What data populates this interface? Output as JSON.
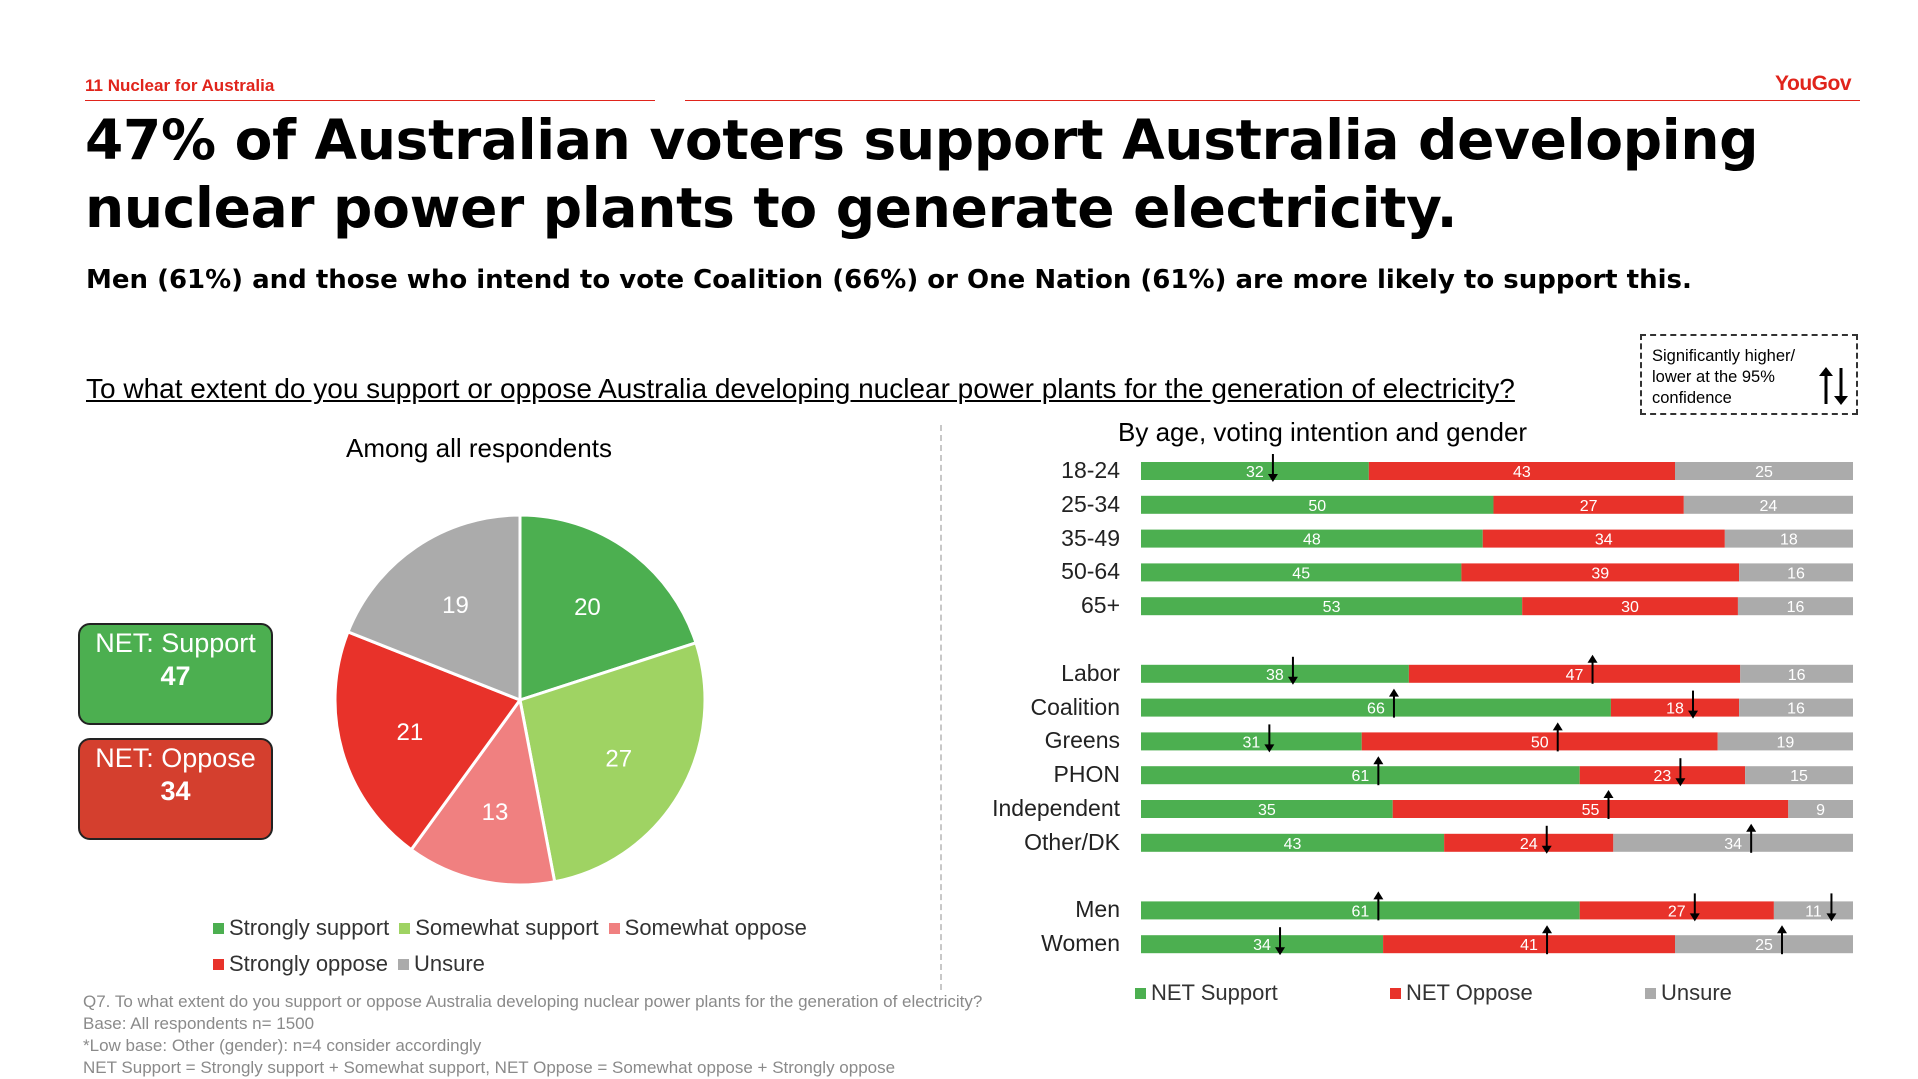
{
  "header": {
    "page_label": "11  Nuclear for Australia",
    "brand": "YouGov",
    "headline_line1": "47% of Australian voters support Australia developing",
    "headline_line2": "nuclear power plants to generate electricity.",
    "subhead": "Men (61%) and those who intend to vote Coalition (66%) or One Nation (61%) are more likely to support this.",
    "question": "To what extent do you support or oppose Australia developing nuclear power plants for the generation of electricity?",
    "significance_note": "Significantly higher/ lower at the 95% confidence"
  },
  "net_boxes": {
    "support_label": "NET: Support",
    "support_value": "47",
    "oppose_label": "NET: Oppose",
    "oppose_value": "34"
  },
  "colors": {
    "strongly_support": "#4caf50",
    "somewhat_support": "#9fd363",
    "somewhat_oppose": "#f08080",
    "strongly_oppose": "#e8322a",
    "unsure": "#ababab",
    "net_support": "#4caf50",
    "net_oppose": "#e8322a",
    "accent": "#e0241b"
  },
  "chart_data": [
    {
      "type": "pie",
      "title": "Among all respondents",
      "categories": [
        "Strongly support",
        "Somewhat support",
        "Somewhat oppose",
        "Strongly oppose",
        "Unsure"
      ],
      "values": [
        20,
        27,
        13,
        21,
        19
      ],
      "legend": [
        "Strongly support",
        "Somewhat support",
        "Somewhat oppose",
        "Strongly oppose",
        "Unsure"
      ],
      "legend_position": "bottom"
    },
    {
      "type": "bar",
      "orientation": "horizontal",
      "stacked": true,
      "title": "By age, voting intention and gender",
      "groups": [
        {
          "categories": [
            "18-24",
            "25-34",
            "35-49",
            "50-64",
            "65+"
          ]
        },
        {
          "categories": [
            "Labor",
            "Coalition",
            "Greens",
            "PHON",
            "Independent",
            "Other/DK"
          ]
        },
        {
          "categories": [
            "Men",
            "Women"
          ]
        }
      ],
      "categories": [
        "18-24",
        "25-34",
        "35-49",
        "50-64",
        "65+",
        "Labor",
        "Coalition",
        "Greens",
        "PHON",
        "Independent",
        "Other/DK",
        "Men",
        "Women"
      ],
      "series": [
        {
          "name": "NET Support",
          "values": [
            32,
            50,
            48,
            45,
            53,
            38,
            66,
            31,
            61,
            35,
            43,
            61,
            34
          ],
          "significance": [
            "down",
            "",
            "",
            "",
            "",
            "down",
            "up",
            "down",
            "up",
            "",
            "",
            "up",
            "down"
          ]
        },
        {
          "name": "NET Oppose",
          "values": [
            43,
            27,
            34,
            39,
            30,
            47,
            18,
            50,
            23,
            55,
            24,
            27,
            41
          ],
          "significance": [
            "",
            "",
            "",
            "",
            "",
            "up",
            "down",
            "up",
            "down",
            "up",
            "down",
            "down",
            "up"
          ]
        },
        {
          "name": "Unsure",
          "values": [
            25,
            24,
            18,
            16,
            16,
            16,
            16,
            19,
            15,
            9,
            34,
            11,
            25
          ],
          "significance": [
            "",
            "",
            "",
            "",
            "",
            "",
            "",
            "",
            "",
            "",
            "up",
            "down",
            "up"
          ]
        }
      ],
      "xlim": [
        0,
        100
      ],
      "legend_position": "bottom"
    }
  ],
  "footnotes": [
    "Q7. To what extent do you support or oppose Australia developing nuclear power plants for the generation of electricity?",
    "Base: All respondents n= 1500",
    "*Low base: Other (gender): n=4 consider accordingly",
    "NET Support = Strongly support + Somewhat support, NET Oppose = Somewhat oppose + Strongly oppose"
  ]
}
